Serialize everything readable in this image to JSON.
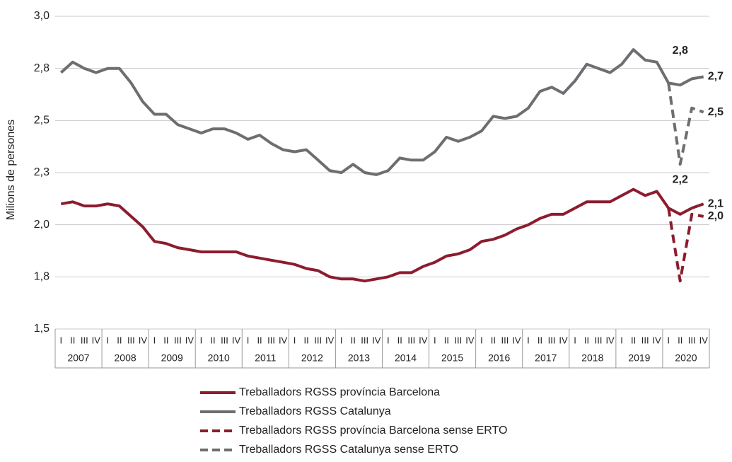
{
  "chart_data": {
    "type": "line",
    "y_label": "Milions de persones",
    "categories": [
      "I",
      "II",
      "III",
      "IV",
      "I",
      "II",
      "III",
      "IV",
      "I",
      "II",
      "III",
      "IV",
      "I",
      "II",
      "III",
      "IV",
      "I",
      "II",
      "III",
      "IV",
      "I",
      "II",
      "III",
      "IV",
      "I",
      "II",
      "III",
      "IV",
      "I",
      "II",
      "III",
      "IV",
      "I",
      "II",
      "III",
      "IV",
      "I",
      "II",
      "III",
      "IV",
      "I",
      "II",
      "III",
      "IV",
      "I",
      "II",
      "III",
      "IV",
      "I",
      "II",
      "III",
      "IV",
      "I",
      "II",
      "III",
      "IV"
    ],
    "years": [
      2007,
      2008,
      2009,
      2010,
      2011,
      2012,
      2013,
      2014,
      2015,
      2016,
      2017,
      2018,
      2019,
      2020
    ],
    "ylim": [
      1.5,
      3.0
    ],
    "yticks": [
      {
        "value": 1.5,
        "label": "1,5"
      },
      {
        "value": 1.75,
        "label": "1,8"
      },
      {
        "value": 2.0,
        "label": "2,0"
      },
      {
        "value": 2.25,
        "label": "2,3"
      },
      {
        "value": 2.5,
        "label": "2,5"
      },
      {
        "value": 2.75,
        "label": "2,8"
      },
      {
        "value": 3.0,
        "label": "3,0"
      }
    ],
    "grid": true,
    "series": [
      {
        "name": "Treballadors RGSS província Barcelona",
        "color": "#8c1c2e",
        "dashed": false,
        "values": [
          2.1,
          2.11,
          2.09,
          2.09,
          2.1,
          2.09,
          2.04,
          1.99,
          1.92,
          1.91,
          1.89,
          1.88,
          1.87,
          1.87,
          1.87,
          1.87,
          1.85,
          1.84,
          1.83,
          1.82,
          1.81,
          1.79,
          1.78,
          1.75,
          1.74,
          1.74,
          1.73,
          1.74,
          1.75,
          1.77,
          1.77,
          1.8,
          1.82,
          1.85,
          1.86,
          1.88,
          1.92,
          1.93,
          1.95,
          1.98,
          2.0,
          2.03,
          2.05,
          2.05,
          2.08,
          2.11,
          2.11,
          2.11,
          2.14,
          2.17,
          2.14,
          2.16,
          2.08,
          2.05,
          2.08,
          2.1
        ],
        "value_labels": [
          null,
          null,
          null,
          null,
          null,
          null,
          null,
          null,
          null,
          null,
          null,
          null,
          null,
          null,
          null,
          null,
          null,
          null,
          null,
          null,
          null,
          null,
          null,
          null,
          null,
          null,
          null,
          null,
          null,
          null,
          null,
          null,
          null,
          null,
          null,
          null,
          null,
          null,
          null,
          null,
          null,
          null,
          null,
          null,
          null,
          null,
          null,
          null,
          null,
          null,
          null,
          "2,2",
          null,
          null,
          null,
          "2,1"
        ]
      },
      {
        "name": "Treballadors RGSS Catalunya",
        "color": "#6d6e71",
        "dashed": false,
        "values": [
          2.73,
          2.78,
          2.75,
          2.73,
          2.75,
          2.75,
          2.68,
          2.59,
          2.53,
          2.53,
          2.48,
          2.46,
          2.44,
          2.46,
          2.46,
          2.44,
          2.41,
          2.43,
          2.39,
          2.36,
          2.35,
          2.36,
          2.31,
          2.26,
          2.25,
          2.29,
          2.25,
          2.24,
          2.26,
          2.32,
          2.31,
          2.31,
          2.35,
          2.42,
          2.4,
          2.42,
          2.45,
          2.52,
          2.51,
          2.52,
          2.56,
          2.64,
          2.66,
          2.63,
          2.69,
          2.77,
          2.75,
          2.73,
          2.77,
          2.84,
          2.79,
          2.78,
          2.68,
          2.67,
          2.7,
          2.71
        ],
        "value_labels": [
          null,
          null,
          null,
          null,
          null,
          null,
          null,
          null,
          null,
          null,
          null,
          null,
          null,
          null,
          null,
          null,
          null,
          null,
          null,
          null,
          null,
          null,
          null,
          null,
          null,
          null,
          null,
          null,
          null,
          null,
          null,
          null,
          null,
          null,
          null,
          null,
          null,
          null,
          null,
          null,
          null,
          null,
          null,
          null,
          null,
          null,
          null,
          null,
          null,
          null,
          null,
          "2,8",
          null,
          null,
          null,
          "2,7"
        ]
      },
      {
        "name": "Treballadors RGSS província Barcelona sense ERTO",
        "color": "#8c1c2e",
        "dashed": true,
        "values": [
          null,
          null,
          null,
          null,
          null,
          null,
          null,
          null,
          null,
          null,
          null,
          null,
          null,
          null,
          null,
          null,
          null,
          null,
          null,
          null,
          null,
          null,
          null,
          null,
          null,
          null,
          null,
          null,
          null,
          null,
          null,
          null,
          null,
          null,
          null,
          null,
          null,
          null,
          null,
          null,
          null,
          null,
          null,
          null,
          null,
          null,
          null,
          null,
          null,
          null,
          null,
          null,
          2.08,
          1.73,
          2.05,
          2.04
        ],
        "value_labels": [
          null,
          null,
          null,
          null,
          null,
          null,
          null,
          null,
          null,
          null,
          null,
          null,
          null,
          null,
          null,
          null,
          null,
          null,
          null,
          null,
          null,
          null,
          null,
          null,
          null,
          null,
          null,
          null,
          null,
          null,
          null,
          null,
          null,
          null,
          null,
          null,
          null,
          null,
          null,
          null,
          null,
          null,
          null,
          null,
          null,
          null,
          null,
          null,
          null,
          null,
          null,
          null,
          null,
          null,
          null,
          "2,0"
        ]
      },
      {
        "name": "Treballadors RGSS Catalunya sense ERTO",
        "color": "#6d6e71",
        "dashed": true,
        "values": [
          null,
          null,
          null,
          null,
          null,
          null,
          null,
          null,
          null,
          null,
          null,
          null,
          null,
          null,
          null,
          null,
          null,
          null,
          null,
          null,
          null,
          null,
          null,
          null,
          null,
          null,
          null,
          null,
          null,
          null,
          null,
          null,
          null,
          null,
          null,
          null,
          null,
          null,
          null,
          null,
          null,
          null,
          null,
          null,
          null,
          null,
          null,
          null,
          null,
          null,
          null,
          null,
          2.68,
          2.29,
          2.56,
          2.54
        ],
        "value_labels": [
          null,
          null,
          null,
          null,
          null,
          null,
          null,
          null,
          null,
          null,
          null,
          null,
          null,
          null,
          null,
          null,
          null,
          null,
          null,
          null,
          null,
          null,
          null,
          null,
          null,
          null,
          null,
          null,
          null,
          null,
          null,
          null,
          null,
          null,
          null,
          null,
          null,
          null,
          null,
          null,
          null,
          null,
          null,
          null,
          null,
          null,
          null,
          null,
          null,
          null,
          null,
          null,
          null,
          null,
          null,
          "2,5"
        ]
      }
    ]
  }
}
